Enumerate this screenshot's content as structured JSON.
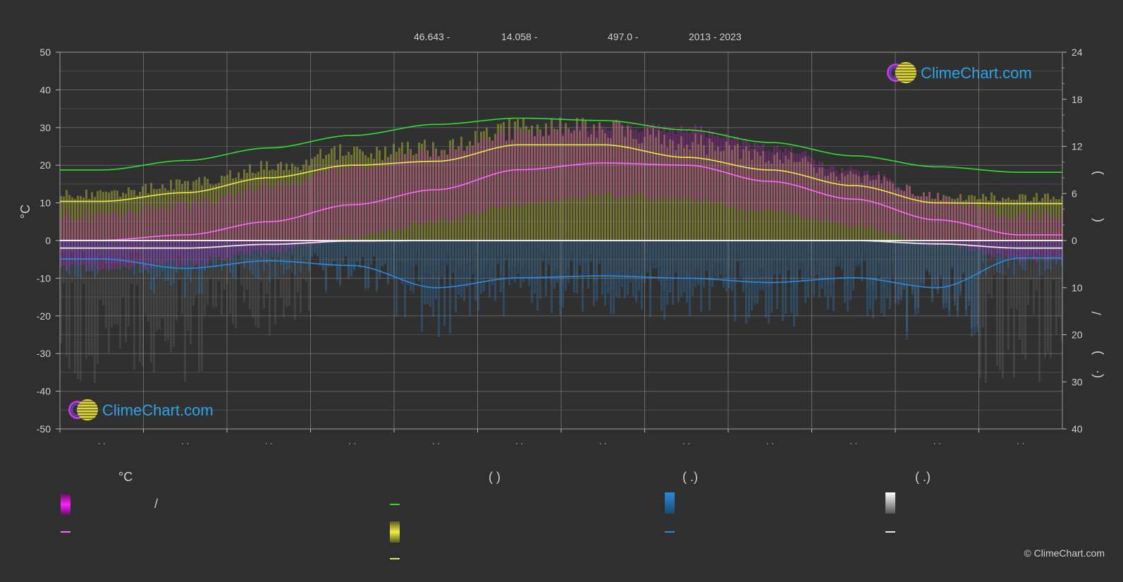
{
  "header": {
    "latitude": "46.643 -",
    "longitude": "14.058 -",
    "elevation": "497.0 -",
    "years": "2013 - 2023"
  },
  "axes": {
    "left_unit": "°C",
    "right_unit_top": ")",
    "right_unit_top2": "(",
    "right_unit_mid": "/",
    "right_unit_bot": ")",
    "right_unit_bot2": "(·"
  },
  "logo": {
    "text": "ClimeChart.com"
  },
  "legend": {
    "col1_title": "°C",
    "col1_item1_suffix": "/",
    "col2_title": "(          )",
    "col3_title": "(   .)",
    "col4_title": "(   .)"
  },
  "copyright": "© ClimeChart.com",
  "colors": {
    "temp_range": "#d020d0",
    "temp_avg": "#ff66ff",
    "daylight": "#33dd33",
    "sunshine": "#e8e84a",
    "sunshine_fill": "#a8a838",
    "rain": "#2a8be0",
    "snow": "#e8e8e8"
  },
  "chart_data": {
    "type": "area",
    "x_months": [
      "",
      "",
      "",
      "",
      "",
      "",
      "",
      "",
      "",
      "",
      "",
      ""
    ],
    "x_tick_labels": [
      "· ·",
      "· ·",
      "· ·",
      "· ·",
      "· ·",
      "· ·",
      "· ·",
      "· ·",
      "· ·",
      "· ·",
      "· ·",
      "· ·"
    ],
    "y_left_ticks": [
      50,
      40,
      30,
      20,
      10,
      0,
      -10,
      -20,
      -30,
      -40,
      -50
    ],
    "y_left_range": [
      -50,
      50
    ],
    "y_right_top_ticks": [
      24,
      18,
      12,
      6,
      0
    ],
    "y_right_top_range": [
      0,
      24
    ],
    "y_right_bottom_ticks": [
      10,
      20,
      30,
      40
    ],
    "y_right_bottom_range": [
      0,
      40
    ],
    "grid": true,
    "series": [
      {
        "name": "daylight_hours",
        "axis": "right_top",
        "values": [
          9.0,
          10.2,
          11.8,
          13.4,
          14.8,
          15.6,
          15.3,
          14.1,
          12.5,
          10.8,
          9.4,
          8.7
        ]
      },
      {
        "name": "sunshine_hours",
        "axis": "right_top",
        "values": [
          5.0,
          6.1,
          8.0,
          9.6,
          10.1,
          12.2,
          12.2,
          10.6,
          9.0,
          7.0,
          4.8,
          4.7
        ]
      },
      {
        "name": "temp_avg",
        "axis": "left",
        "values": [
          0.1,
          1.5,
          5.0,
          9.5,
          13.5,
          18.8,
          20.6,
          20.0,
          15.7,
          11.0,
          5.5,
          1.5
        ]
      },
      {
        "name": "temp_max_band",
        "axis": "left",
        "values": [
          5.0,
          8.0,
          13.0,
          18.0,
          22.0,
          27.0,
          29.0,
          28.0,
          23.0,
          17.0,
          10.0,
          5.0
        ]
      },
      {
        "name": "temp_min_band",
        "axis": "left",
        "values": [
          -6.0,
          -5.0,
          -2.0,
          2.0,
          6.0,
          11.0,
          13.0,
          12.0,
          9.0,
          5.0,
          0.0,
          -4.0
        ]
      },
      {
        "name": "precipitation",
        "axis": "right_bottom",
        "values": [
          3.9,
          5.9,
          4.3,
          5.3,
          10.0,
          7.9,
          7.5,
          8.0,
          8.9,
          7.9,
          10.0,
          3.7
        ]
      },
      {
        "name": "snowfall",
        "axis": "right_bottom",
        "values": [
          1.6,
          1.6,
          0.8,
          0.1,
          0.0,
          0.0,
          0.0,
          0.0,
          0.0,
          0.0,
          0.7,
          1.6
        ]
      }
    ]
  }
}
